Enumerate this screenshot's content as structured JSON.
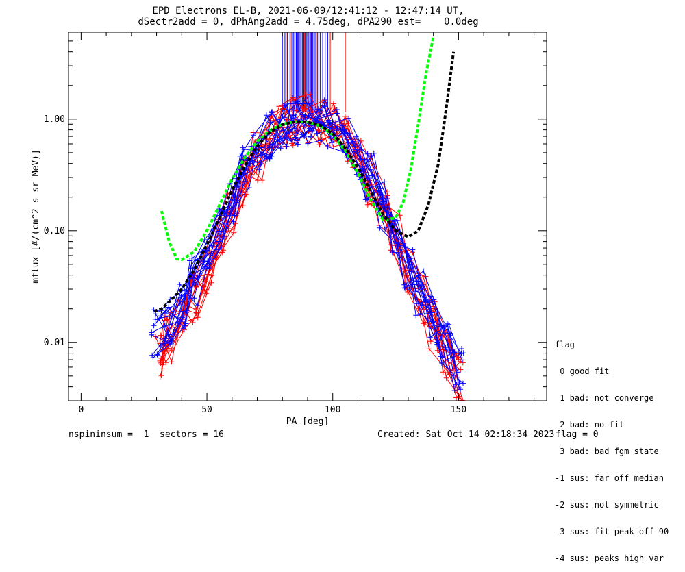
{
  "title_line1": "EPD Electrons EL-B, 2021-06-09/12:41:12 - 12:47:14 UT,",
  "title_line2": "dSectr2add = 0, dPhAng2add = 4.75deg, dPA290_est=    0.0deg",
  "footer": {
    "left": "nspininsum =  1  sectors = 16",
    "created": "Created: Sat Oct 14 02:18:34 2023",
    "flag": "flag = 0"
  },
  "legend": {
    "title": "flag",
    "items": [
      " 0 good fit",
      " 1 bad: not converge",
      " 2 bad: no fit",
      " 3 bad: bad fgm state",
      "-1 sus: far off median",
      "-2 sus: not symmetric",
      "-3 sus: fit peak off 90",
      "-4 sus: peaks high var"
    ]
  },
  "colors": {
    "red": "#ff0000",
    "blue": "#0000ff",
    "green": "#00ff00",
    "black": "#000000"
  },
  "chart_data": {
    "type": "scatter",
    "xlabel": "PA [deg]",
    "ylabel": "mflux [#/(cm^2 s sr MeV)]",
    "xlim": [
      -5,
      185
    ],
    "ylim": [
      0.003,
      6
    ],
    "yscale": "log",
    "xticks": [
      0,
      50,
      100,
      150
    ],
    "xtick_labels": [
      "0",
      "50",
      "100",
      "150"
    ],
    "yticks": [
      0.01,
      0.1,
      1.0
    ],
    "ytick_labels": [
      "0.01",
      "0.10",
      "1.00"
    ],
    "series": [
      {
        "color": "red",
        "style": "line+plus",
        "x": [
          31,
          35,
          40,
          45,
          50,
          55,
          60,
          65,
          70,
          75,
          80,
          85,
          90,
          95,
          100,
          105,
          110,
          115,
          120,
          125,
          130,
          135,
          140,
          145,
          150
        ],
        "y": [
          0.008,
          0.011,
          0.016,
          0.025,
          0.045,
          0.085,
          0.16,
          0.28,
          0.46,
          0.68,
          0.86,
          0.97,
          1.0,
          0.96,
          0.84,
          0.66,
          0.45,
          0.28,
          0.16,
          0.085,
          0.045,
          0.024,
          0.014,
          0.008,
          0.005
        ]
      },
      {
        "color": "blue",
        "style": "line+plus",
        "x": [
          30,
          35,
          40,
          45,
          50,
          55,
          60,
          65,
          70,
          75,
          80,
          85,
          90,
          95,
          100,
          105,
          110,
          115,
          120,
          125,
          130,
          135,
          140,
          145,
          150
        ],
        "y": [
          0.012,
          0.016,
          0.022,
          0.034,
          0.058,
          0.11,
          0.2,
          0.35,
          0.55,
          0.74,
          0.88,
          0.96,
          0.98,
          0.95,
          0.85,
          0.68,
          0.48,
          0.3,
          0.17,
          0.095,
          0.05,
          0.028,
          0.016,
          0.009,
          0.006
        ]
      }
    ],
    "vertical_lines": [
      {
        "color": "blue",
        "x": [
          80,
          81,
          82,
          83,
          84,
          84.5,
          85,
          85.5,
          86,
          86.5,
          87,
          87.5,
          88,
          88.5,
          89,
          89.5,
          90,
          90.5,
          91,
          91.5,
          92,
          92.5,
          93,
          94,
          95,
          96,
          97,
          98
        ]
      },
      {
        "color": "red",
        "x": [
          81.5,
          83.5,
          86.3,
          88.7,
          91.3,
          93.5,
          99,
          105
        ]
      }
    ],
    "fits": [
      {
        "color": "green",
        "style": "dashed",
        "x": [
          32,
          35,
          38,
          40,
          45,
          50,
          55,
          60,
          65,
          70,
          75,
          80,
          85,
          90,
          95,
          100,
          105,
          110,
          115,
          120,
          125,
          128,
          131,
          134,
          137,
          140
        ],
        "y": [
          0.15,
          0.08,
          0.056,
          0.055,
          0.065,
          0.1,
          0.17,
          0.29,
          0.45,
          0.63,
          0.79,
          0.9,
          0.95,
          0.94,
          0.87,
          0.72,
          0.52,
          0.33,
          0.19,
          0.125,
          0.13,
          0.18,
          0.35,
          0.9,
          2.5,
          5.5
        ]
      },
      {
        "color": "black",
        "style": "dashed",
        "x": [
          29,
          32,
          35,
          40,
          45,
          50,
          55,
          60,
          65,
          70,
          75,
          80,
          85,
          90,
          95,
          100,
          105,
          110,
          115,
          120,
          125,
          130,
          134,
          138,
          142,
          145,
          148
        ],
        "y": [
          0.019,
          0.02,
          0.023,
          0.03,
          0.045,
          0.075,
          0.13,
          0.23,
          0.38,
          0.57,
          0.76,
          0.89,
          0.95,
          0.94,
          0.88,
          0.74,
          0.55,
          0.37,
          0.23,
          0.14,
          0.1,
          0.088,
          0.1,
          0.17,
          0.4,
          1.2,
          4.0
        ]
      }
    ]
  }
}
